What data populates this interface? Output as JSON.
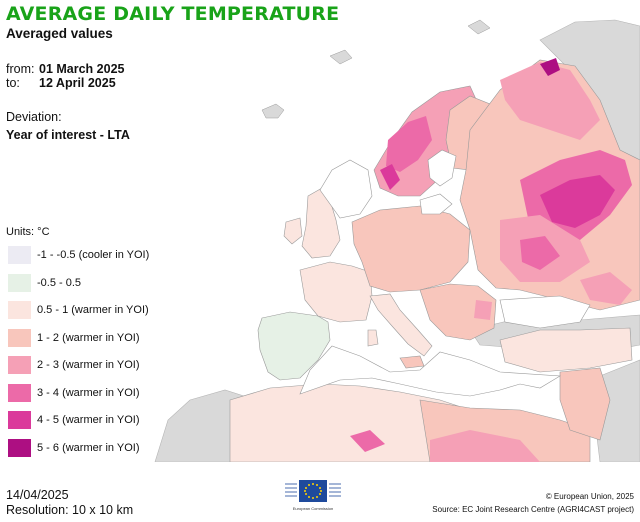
{
  "header": {
    "title": "AVERAGE DAILY TEMPERATURE",
    "subtitle": "Averaged values"
  },
  "period": {
    "from_label": "from:",
    "from_value": "01 March 2025",
    "to_label": "to:",
    "to_value": "12 April 2025"
  },
  "deviation": {
    "label": "Deviation:",
    "value": "Year of interest - LTA"
  },
  "legend": {
    "units": "Units: °C",
    "items": [
      {
        "label": "-1 - -0.5 (cooler in YOI)",
        "color": "#ecebf3"
      },
      {
        "label": "-0.5 - 0.5",
        "color": "#e6f1e6"
      },
      {
        "label": "0.5 - 1 (warmer in YOI)",
        "color": "#fbe5df"
      },
      {
        "label": "1 - 2 (warmer in YOI)",
        "color": "#f8c6bc"
      },
      {
        "label": "2 - 3 (warmer in YOI)",
        "color": "#f5a0b6"
      },
      {
        "label": "3 - 4 (warmer in YOI)",
        "color": "#ec6aa8"
      },
      {
        "label": "4 - 5 (warmer in YOI)",
        "color": "#db3a9b"
      },
      {
        "label": "5 - 6 (warmer in YOI)",
        "color": "#ad0f82"
      }
    ]
  },
  "footer": {
    "date": "14/04/2025",
    "resolution": "Resolution: 10 x 10 km",
    "copyright": "© European Union, 2025",
    "source": "Source: EC Joint Research Centre (AGRI4CAST project)",
    "logo_caption": "European Commission"
  },
  "colors": {
    "title": "#19a319",
    "sea": "#ffffff",
    "outside_area": "#d9d9d9",
    "borders": "#9a9a9a"
  }
}
